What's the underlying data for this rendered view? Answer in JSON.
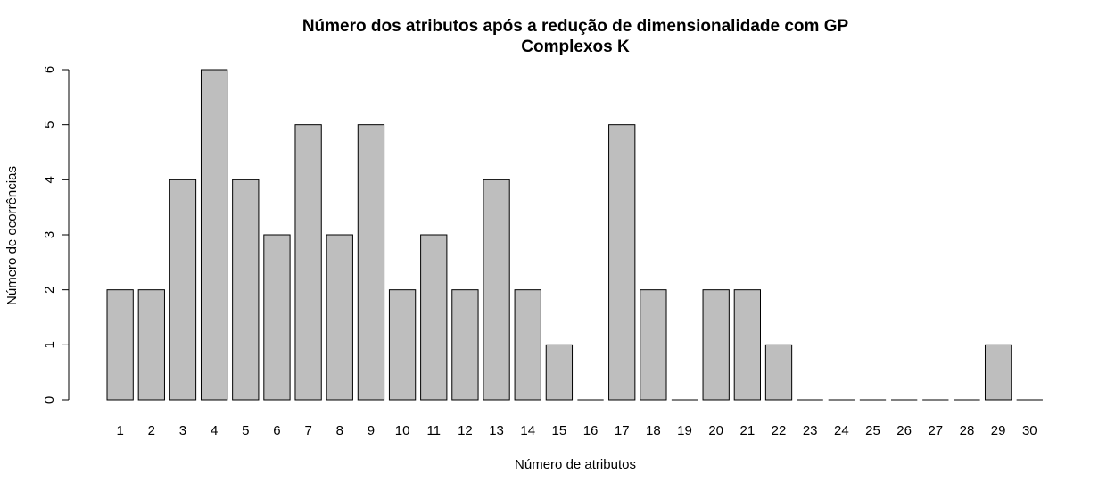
{
  "chart_data": {
    "type": "bar",
    "title": "Número dos atributos após a redução de dimensionalidade com GP",
    "subtitle": "Complexos K",
    "xlabel": "Número de atributos",
    "ylabel": "Número de ocorrências",
    "ylim": [
      0,
      6
    ],
    "yticks": [
      "0",
      "1",
      "2",
      "3",
      "4",
      "5",
      "6"
    ],
    "categories": [
      "1",
      "2",
      "3",
      "4",
      "5",
      "6",
      "7",
      "8",
      "9",
      "10",
      "11",
      "12",
      "13",
      "14",
      "15",
      "16",
      "17",
      "18",
      "19",
      "20",
      "21",
      "22",
      "23",
      "24",
      "25",
      "26",
      "27",
      "28",
      "29",
      "30"
    ],
    "values": [
      2,
      2,
      4,
      6,
      4,
      3,
      5,
      3,
      5,
      2,
      3,
      2,
      4,
      2,
      1,
      0,
      5,
      2,
      0,
      2,
      2,
      1,
      0,
      0,
      0,
      0,
      0,
      0,
      1,
      0
    ],
    "bar_color": "#bebebe",
    "bar_edge_color": "#000000",
    "grid": false,
    "legend": "none"
  }
}
